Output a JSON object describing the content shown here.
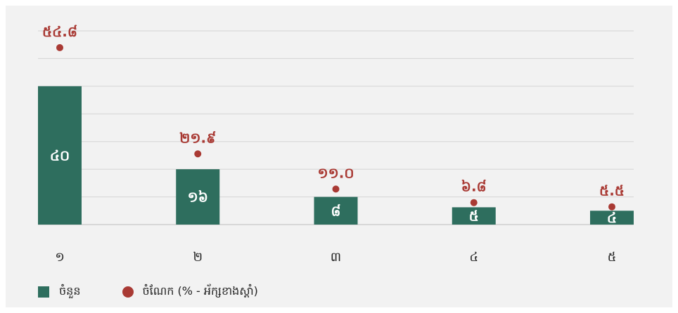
{
  "chart_data": {
    "type": "bar",
    "categories": [
      "១",
      "២",
      "៣",
      "៤",
      "៥"
    ],
    "series": [
      {
        "name": "ចំនួន",
        "kind": "bar",
        "color": "#2e6e5e",
        "values": [
          40,
          16,
          8,
          5,
          4
        ],
        "labels": [
          "៤០",
          "១៦",
          "៨",
          "៥",
          "៤"
        ]
      },
      {
        "name": "ចំណែក (% - អ័ក្សខាងស្ដាំ)",
        "kind": "scatter",
        "color": "#a93a34",
        "values": [
          54.8,
          21.9,
          11.0,
          6.8,
          5.5
        ],
        "labels": [
          "៥៤.៨",
          "២១.៩",
          "១១.០",
          "៦.៨",
          "៥.៥"
        ]
      }
    ],
    "ylim": [
      0,
      56
    ],
    "y2lim": [
      0,
      60
    ],
    "grid": true,
    "legend": "bottom-left"
  }
}
